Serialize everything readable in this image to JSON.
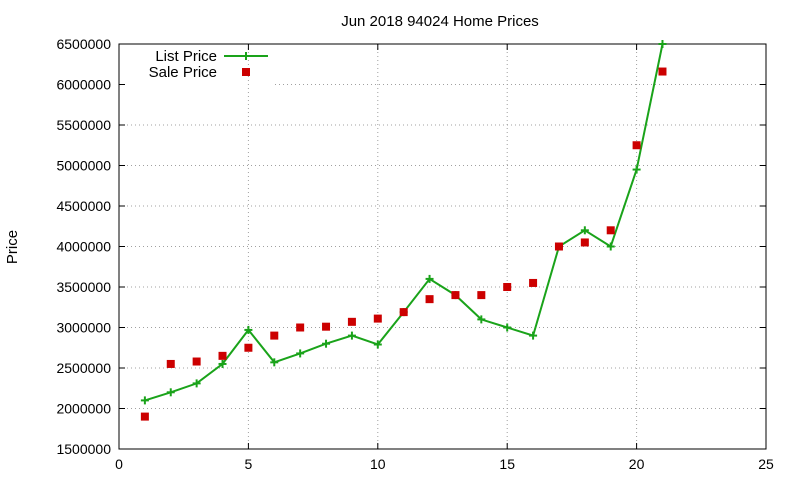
{
  "chart_data": {
    "type": "line",
    "title": "Jun 2018 94024 Home Prices",
    "xlabel": "",
    "ylabel": "Price",
    "xlim": [
      0,
      25
    ],
    "ylim": [
      1500000,
      6500000
    ],
    "x_ticks": [
      0,
      5,
      10,
      15,
      20,
      25
    ],
    "y_ticks": [
      1500000,
      2000000,
      2500000,
      3000000,
      3500000,
      4000000,
      4500000,
      5000000,
      5500000,
      6000000,
      6500000
    ],
    "grid": true,
    "legend_position": "top-left",
    "series": [
      {
        "name": "List Price",
        "style": "line-with-plus-markers",
        "color": "#1aa31a",
        "x": [
          1,
          2,
          3,
          4,
          5,
          6,
          7,
          8,
          9,
          10,
          11,
          12,
          13,
          14,
          15,
          16,
          17,
          18,
          19,
          20,
          21
        ],
        "values": [
          2100000,
          2200000,
          2310000,
          2550000,
          2970000,
          2570000,
          2680000,
          2800000,
          2900000,
          2790000,
          3190000,
          3600000,
          3400000,
          3100000,
          3000000,
          2900000,
          4000000,
          4200000,
          4000000,
          4950000,
          6500000
        ]
      },
      {
        "name": "Sale Price",
        "style": "square-markers",
        "color": "#cc0000",
        "x": [
          1,
          2,
          3,
          4,
          5,
          6,
          7,
          8,
          9,
          10,
          11,
          12,
          13,
          14,
          15,
          16,
          17,
          18,
          19,
          20,
          21
        ],
        "values": [
          1900000,
          2550000,
          2580000,
          2650000,
          2750000,
          2900000,
          3000000,
          3010000,
          3070000,
          3110000,
          3190000,
          3350000,
          3400000,
          3400000,
          3500000,
          3550000,
          4000000,
          4050000,
          4200000,
          5250000,
          6160000
        ]
      }
    ]
  }
}
